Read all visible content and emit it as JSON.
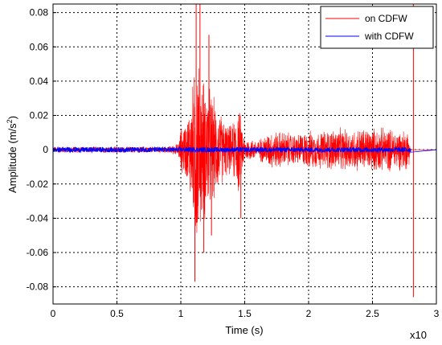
{
  "chart_data": {
    "type": "line",
    "xlabel": "Time (s)",
    "ylabel_main": "Amplitude (m/s",
    "ylabel_sup": "2",
    "ylabel_close": ")",
    "x_exponent_label": "x10",
    "xlim": [
      0,
      3
    ],
    "ylim": [
      -0.09,
      0.085
    ],
    "x_ticks": [
      0,
      0.5,
      1,
      1.5,
      2,
      2.5,
      3
    ],
    "x_tick_labels": [
      "0",
      "0.5",
      "1",
      "1.5",
      "2",
      "2.5",
      "3"
    ],
    "y_ticks": [
      -0.08,
      -0.06,
      -0.04,
      -0.02,
      0,
      0.02,
      0.04,
      0.06,
      0.08
    ],
    "y_tick_labels": [
      "-0.08",
      "-0.06",
      "-0.04",
      "-0.02",
      "0",
      "0.02",
      "0.04",
      "0.06",
      "0.08"
    ],
    "grid": true,
    "legend_position": "top-right",
    "series": [
      {
        "name": "on CDFW",
        "color": "#ff0000",
        "envelope": [
          [
            0.0,
            0.002
          ],
          [
            0.3,
            0.002
          ],
          [
            0.6,
            0.002
          ],
          [
            0.9,
            0.002
          ],
          [
            0.98,
            0.004
          ],
          [
            1.0,
            0.014
          ],
          [
            1.05,
            0.02
          ],
          [
            1.1,
            0.045
          ],
          [
            1.12,
            0.07
          ],
          [
            1.15,
            0.05
          ],
          [
            1.2,
            0.045
          ],
          [
            1.25,
            0.035
          ],
          [
            1.3,
            0.025
          ],
          [
            1.35,
            0.018
          ],
          [
            1.4,
            0.015
          ],
          [
            1.45,
            0.03
          ],
          [
            1.5,
            0.008
          ],
          [
            1.6,
            0.006
          ],
          [
            1.7,
            0.012
          ],
          [
            1.8,
            0.012
          ],
          [
            1.9,
            0.01
          ],
          [
            2.0,
            0.012
          ],
          [
            2.1,
            0.012
          ],
          [
            2.2,
            0.014
          ],
          [
            2.3,
            0.013
          ],
          [
            2.4,
            0.014
          ],
          [
            2.5,
            0.014
          ],
          [
            2.6,
            0.014
          ],
          [
            2.7,
            0.013
          ],
          [
            2.78,
            0.013
          ],
          [
            2.8,
            0.0
          ],
          [
            3.0,
            0.0
          ]
        ],
        "spikes": [
          {
            "x": 1.11,
            "y": -0.077
          },
          {
            "x": 1.12,
            "y": 0.085
          },
          {
            "x": 1.15,
            "y": 0.085
          },
          {
            "x": 1.22,
            "y": 0.067
          },
          {
            "x": 1.18,
            "y": -0.06
          },
          {
            "x": 1.24,
            "y": -0.05
          },
          {
            "x": 1.47,
            "y": -0.04
          },
          {
            "x": 2.82,
            "y": -0.086
          },
          {
            "x": 2.82,
            "y": 0.085
          }
        ]
      },
      {
        "name": "with CDFW",
        "color": "#0000ff",
        "amplitude": 0.0015,
        "x_range": [
          0,
          2.8
        ]
      }
    ]
  }
}
